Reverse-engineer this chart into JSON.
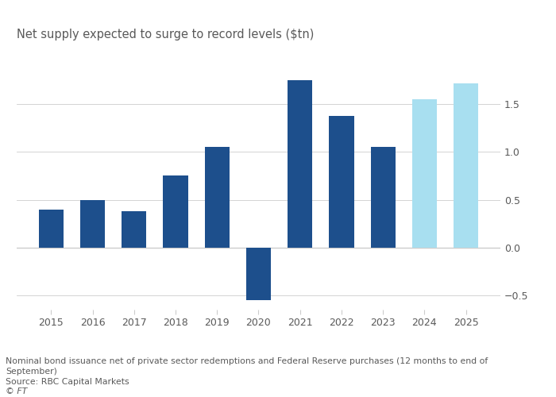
{
  "years": [
    2015,
    2016,
    2017,
    2018,
    2019,
    2020,
    2021,
    2022,
    2023,
    2024,
    2025
  ],
  "values": [
    0.4,
    0.5,
    0.38,
    0.75,
    1.05,
    -0.55,
    1.75,
    1.38,
    1.05,
    1.55,
    1.72
  ],
  "colors": [
    "#1d4f8c",
    "#1d4f8c",
    "#1d4f8c",
    "#1d4f8c",
    "#1d4f8c",
    "#1d4f8c",
    "#1d4f8c",
    "#1d4f8c",
    "#1d4f8c",
    "#a8dff0",
    "#a8dff0"
  ],
  "title": "Net supply expected to surge to record levels ($tn)",
  "footnote1": "Nominal bond issuance net of private sector redemptions and Federal Reserve purchases (12 months to end of",
  "footnote2": "September)",
  "footnote3": "Source: RBC Capital Markets",
  "footnote4": "© FT",
  "ylim": [
    -0.65,
    2.05
  ],
  "yticks": [
    -0.5,
    0.0,
    0.5,
    1.0,
    1.5
  ],
  "bg_color": "#ffffff",
  "plot_bg": "#ffffff",
  "grid_color": "#cccccc",
  "text_color": "#595959",
  "title_color": "#595959",
  "bar_width": 0.6
}
